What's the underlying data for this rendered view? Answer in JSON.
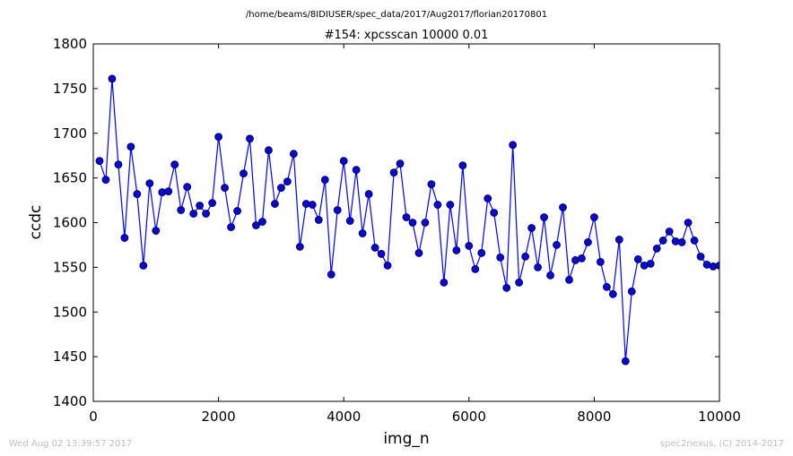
{
  "header": {
    "suptitle": "/home/beams/8IDIUSER/spec_data/2017/Aug2017/florian20170801"
  },
  "footer": {
    "left": "Wed Aug 02 13:39:57 2017",
    "right": "spec2nexus, (C) 2014-2017"
  },
  "chart_data": {
    "type": "line",
    "title": "#154: xpcsscan 10000 0.01",
    "xlabel": "img_n",
    "ylabel": "ccdc",
    "xlim": [
      0,
      10000
    ],
    "ylim": [
      1400,
      1800
    ],
    "xticks": [
      0,
      2000,
      4000,
      6000,
      8000,
      10000
    ],
    "yticks": [
      1400,
      1450,
      1500,
      1550,
      1600,
      1650,
      1700,
      1750,
      1800
    ],
    "color": "#0000ff",
    "marker": "circle",
    "grid": false,
    "series": [
      {
        "x": [
          100,
          200,
          300,
          400,
          500,
          600,
          700,
          800,
          900,
          1000,
          1100,
          1200,
          1300,
          1400,
          1500,
          1600,
          1700,
          1800,
          1900,
          2000,
          2100,
          2200,
          2300,
          2400,
          2500,
          2600,
          2700,
          2800,
          2900,
          3000,
          3100,
          3200,
          3300,
          3400,
          3500,
          3600,
          3700,
          3800,
          3900,
          4000,
          4100,
          4200,
          4300,
          4400,
          4500,
          4600,
          4700,
          4800,
          4900,
          5000,
          5100,
          5200,
          5300,
          5400,
          5500,
          5600,
          5700,
          5800,
          5900,
          6000,
          6100,
          6200,
          6300,
          6400,
          6500,
          6600,
          6700,
          6800,
          6900,
          7000,
          7100,
          7200,
          7300,
          7400,
          7500,
          7600,
          7700,
          7800,
          7900,
          8000,
          8100,
          8200,
          8300,
          8400,
          8500,
          8600,
          8700,
          8800,
          8900,
          9000,
          9100,
          9200,
          9300,
          9400,
          9500,
          9600,
          9700,
          9800,
          9900,
          10000
        ],
        "values": [
          1669,
          1648,
          1761,
          1665,
          1583,
          1685,
          1632,
          1552,
          1644,
          1591,
          1634,
          1635,
          1665,
          1614,
          1640,
          1610,
          1619,
          1610,
          1622,
          1696,
          1639,
          1595,
          1613,
          1655,
          1694,
          1597,
          1601,
          1681,
          1621,
          1639,
          1646,
          1677,
          1573,
          1621,
          1620,
          1603,
          1648,
          1542,
          1614,
          1669,
          1602,
          1659,
          1588,
          1632,
          1572,
          1565,
          1552,
          1656,
          1666,
          1606,
          1600,
          1566,
          1600,
          1643,
          1620,
          1533,
          1620,
          1569,
          1664,
          1574,
          1548,
          1566,
          1627,
          1611,
          1561,
          1527,
          1687,
          1533,
          1562,
          1594,
          1550,
          1606,
          1541,
          1575,
          1617,
          1536,
          1558,
          1560,
          1578,
          1606,
          1556,
          1528,
          1520,
          1581,
          1445,
          1523,
          1559,
          1552,
          1554,
          1571,
          1580,
          1590,
          1579,
          1578,
          1600,
          1580,
          1562,
          1553,
          1551,
          1552
        ]
      }
    ]
  }
}
